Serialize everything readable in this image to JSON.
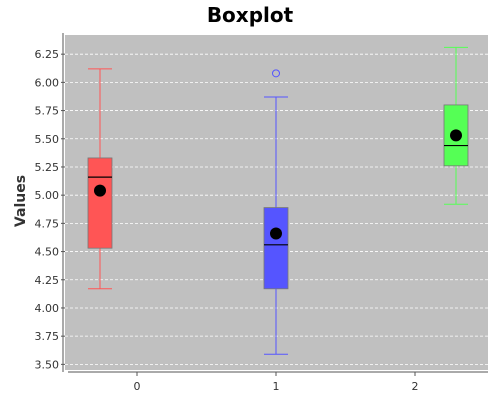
{
  "chart_data": {
    "type": "box",
    "title": "Boxplot",
    "xlabel": "",
    "ylabel": "Values",
    "ylim": [
      3.45,
      6.42
    ],
    "yticks": [
      "3.50",
      "3.75",
      "4.00",
      "4.25",
      "4.50",
      "4.75",
      "5.00",
      "5.25",
      "5.50",
      "5.75",
      "6.00",
      "6.25"
    ],
    "categories": [
      "0",
      "1",
      "2"
    ],
    "grid": true,
    "background": "#c0c0c0",
    "boxes": [
      {
        "category": "0",
        "color": "#ff5555",
        "whisker_low": 4.17,
        "q1": 4.53,
        "median": 5.16,
        "q3": 5.33,
        "whisker_high": 6.12,
        "mean": 5.04,
        "outliers": []
      },
      {
        "category": "1",
        "color": "#5555ff",
        "whisker_low": 3.59,
        "q1": 4.17,
        "median": 4.56,
        "q3": 4.89,
        "whisker_high": 5.87,
        "mean": 4.66,
        "outliers": [
          6.08
        ]
      },
      {
        "category": "2",
        "color": "#55ff55",
        "whisker_low": 4.92,
        "q1": 5.26,
        "median": 5.44,
        "q3": 5.8,
        "whisker_high": 6.31,
        "mean": 5.53,
        "outliers": []
      }
    ]
  }
}
